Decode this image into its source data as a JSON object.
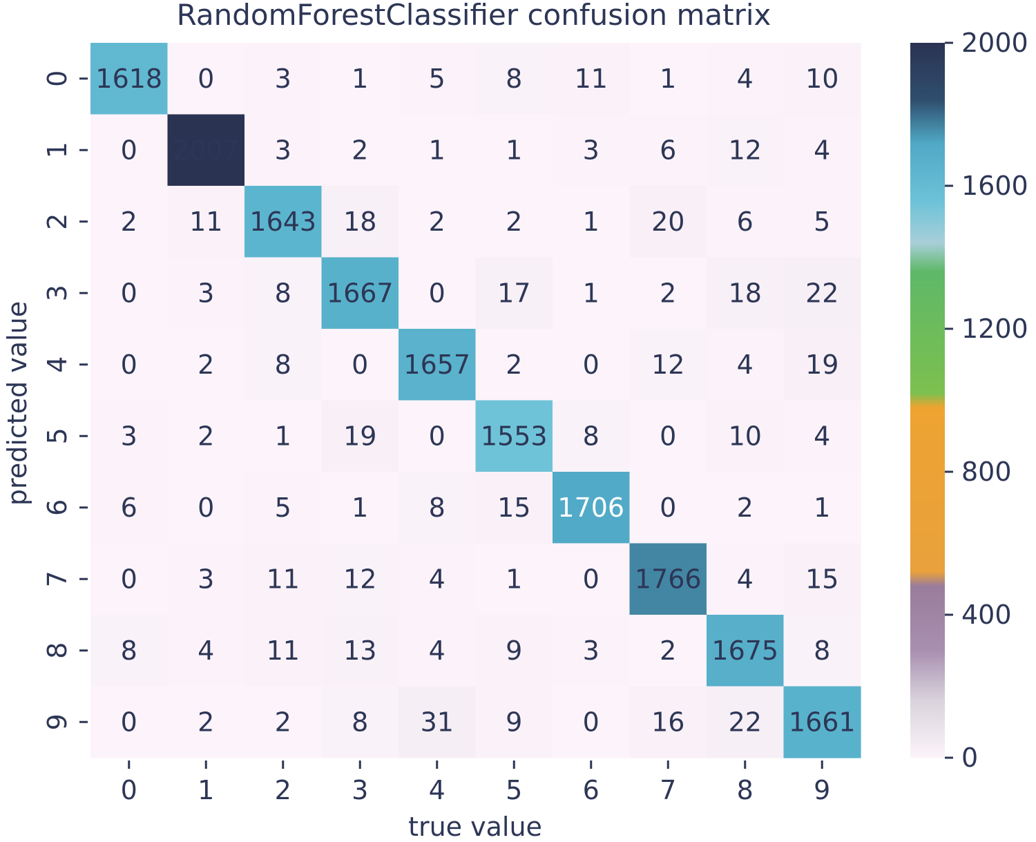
{
  "chart_data": {
    "type": "heatmap",
    "title": "RandomForestClassifier confusion matrix",
    "xlabel": "true value",
    "ylabel": "predicted value",
    "x_categories": [
      "0",
      "1",
      "2",
      "3",
      "4",
      "5",
      "6",
      "7",
      "8",
      "9"
    ],
    "y_categories": [
      "0",
      "1",
      "2",
      "3",
      "4",
      "5",
      "6",
      "7",
      "8",
      "9"
    ],
    "values": [
      [
        1618,
        0,
        3,
        1,
        5,
        8,
        11,
        1,
        4,
        10
      ],
      [
        0,
        2007,
        3,
        2,
        1,
        1,
        3,
        6,
        12,
        4
      ],
      [
        2,
        11,
        1643,
        18,
        2,
        2,
        1,
        20,
        6,
        5
      ],
      [
        0,
        3,
        8,
        1667,
        0,
        17,
        1,
        2,
        18,
        22
      ],
      [
        0,
        2,
        8,
        0,
        1657,
        2,
        0,
        12,
        4,
        19
      ],
      [
        3,
        2,
        1,
        19,
        0,
        1553,
        8,
        0,
        10,
        4
      ],
      [
        6,
        0,
        5,
        1,
        8,
        15,
        1706,
        0,
        2,
        1
      ],
      [
        0,
        3,
        11,
        12,
        4,
        1,
        0,
        1766,
        4,
        15
      ],
      [
        8,
        4,
        11,
        13,
        4,
        9,
        3,
        2,
        1675,
        8
      ],
      [
        0,
        2,
        2,
        8,
        31,
        9,
        0,
        16,
        22,
        1661
      ]
    ],
    "colorbar": {
      "ticks": [
        "0",
        "400",
        "800",
        "1200",
        "1600",
        "2000"
      ],
      "range": [
        0,
        2000
      ],
      "colorscale": [
        [
          0,
          "#fcf4fa"
        ],
        [
          0.08,
          "#d9d3dc"
        ],
        [
          0.15,
          "#a88fb0"
        ],
        [
          0.24,
          "#9a7c9c"
        ],
        [
          0.26,
          "#e8a13c"
        ],
        [
          0.49,
          "#eea331"
        ],
        [
          0.51,
          "#7cc04f"
        ],
        [
          0.68,
          "#5fb868"
        ],
        [
          0.72,
          "#a8cfd9"
        ],
        [
          0.78,
          "#6bc2d8"
        ],
        [
          0.86,
          "#4fa8c5"
        ],
        [
          0.92,
          "#2f4e6e"
        ],
        [
          1,
          "#2b3353"
        ]
      ]
    }
  }
}
